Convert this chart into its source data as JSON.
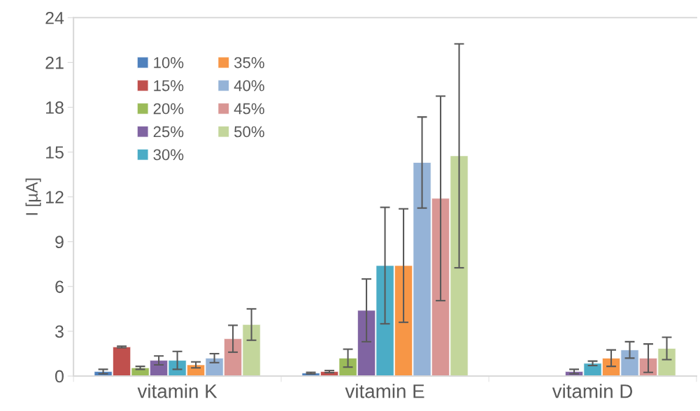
{
  "chart_data": {
    "type": "bar",
    "ylabel": "I [µA]",
    "categories": [
      "vitamin K",
      "vitamin E",
      "vitamin D"
    ],
    "series": [
      {
        "name": "10%",
        "color": "#4f81bd",
        "values": [
          0.3,
          0.2,
          null
        ],
        "errors": [
          0.15,
          0.05,
          null
        ]
      },
      {
        "name": "15%",
        "color": "#c0504d",
        "values": [
          1.95,
          0.3,
          null
        ],
        "errors": [
          0.05,
          0.07,
          null
        ]
      },
      {
        "name": "20%",
        "color": "#9bbb59",
        "values": [
          0.55,
          1.2,
          null
        ],
        "errors": [
          0.1,
          0.6,
          null
        ]
      },
      {
        "name": "25%",
        "color": "#8064a2",
        "values": [
          1.05,
          4.4,
          0.3
        ],
        "errors": [
          0.3,
          2.1,
          0.15
        ]
      },
      {
        "name": "30%",
        "color": "#4bacc6",
        "values": [
          1.05,
          7.4,
          0.85
        ],
        "errors": [
          0.6,
          3.9,
          0.15
        ]
      },
      {
        "name": "35%",
        "color": "#f79646",
        "values": [
          0.75,
          7.4,
          1.2
        ],
        "errors": [
          0.2,
          3.8,
          0.55
        ]
      },
      {
        "name": "40%",
        "color": "#95b3d7",
        "values": [
          1.2,
          14.3,
          1.75
        ],
        "errors": [
          0.3,
          3.05,
          0.55
        ]
      },
      {
        "name": "45%",
        "color": "#d99694",
        "values": [
          2.5,
          11.9,
          1.2
        ],
        "errors": [
          0.9,
          6.85,
          0.95
        ]
      },
      {
        "name": "50%",
        "color": "#c3d69b",
        "values": [
          3.45,
          14.75,
          1.85
        ],
        "errors": [
          1.05,
          7.5,
          0.75
        ]
      }
    ],
    "ylim": [
      0,
      24
    ],
    "yticks": [
      0,
      3,
      6,
      9,
      12,
      15,
      18,
      21,
      24
    ],
    "grid": false,
    "legend": "top left"
  }
}
